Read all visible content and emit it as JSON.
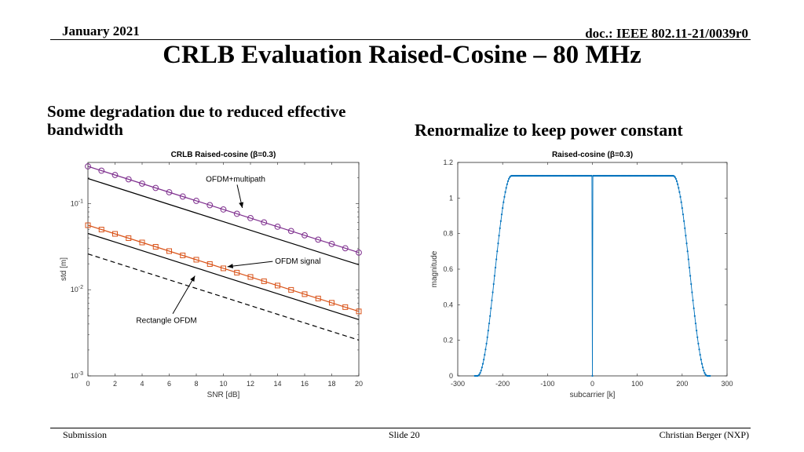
{
  "slide": {
    "date": "January 2021",
    "doc": "doc.: IEEE 802.11-21/0039r0",
    "title": "CRLB Evaluation Raised-Cosine – 80 MHz",
    "left_text": "Some degradation due to reduced effective bandwidth",
    "right_text": "Renormalize to keep power constant",
    "footer_left": "Submission",
    "footer_center": "Slide 20",
    "footer_right": "Christian Berger (NXP)"
  },
  "chart_data": [
    {
      "type": "line",
      "title": "CRLB Raised-cosine (β=0.3)",
      "xlabel": "SNR [dB]",
      "ylabel": "std [m]",
      "yscale": "log",
      "xlim": [
        0,
        20
      ],
      "ylim": [
        0.001,
        0.3
      ],
      "xticks": [
        0,
        2,
        4,
        6,
        8,
        10,
        12,
        14,
        16,
        18,
        20
      ],
      "yticks": [
        {
          "value": 0.1,
          "base": "10",
          "exp": "-1"
        },
        {
          "value": 0.01,
          "base": "10",
          "exp": "-2"
        },
        {
          "value": 0.001,
          "base": "10",
          "exp": "-3"
        }
      ],
      "series": [
        {
          "style": "purple-circle",
          "color": "#7e2f8e",
          "x": [
            0,
            20
          ],
          "y": [
            0.27,
            0.027
          ],
          "markers_every": 1
        },
        {
          "style": "black-solid",
          "color": "#000000",
          "x": [
            0,
            20
          ],
          "y": [
            0.195,
            0.0195
          ]
        },
        {
          "style": "orange-square",
          "color": "#d95319",
          "x": [
            0,
            20
          ],
          "y": [
            0.056,
            0.0056
          ],
          "markers_every": 1
        },
        {
          "style": "black-solid",
          "color": "#000000",
          "x": [
            0,
            20
          ],
          "y": [
            0.045,
            0.0045
          ]
        },
        {
          "style": "black-dashed",
          "color": "#000000",
          "x": [
            0,
            20
          ],
          "y": [
            0.026,
            0.0026
          ]
        }
      ],
      "annotations": [
        {
          "text": "OFDM+multipath",
          "tx": 10.9,
          "ty": 0.18,
          "ax": 11.4,
          "ay": 0.089
        },
        {
          "text": "OFDM signal",
          "tx": 15.5,
          "ty": 0.02,
          "ax": 10.3,
          "ay": 0.0185
        },
        {
          "text": "Rectangle OFDM",
          "tx": 5.8,
          "ty": 0.0041,
          "ax": 7.9,
          "ay": 0.0145
        }
      ]
    },
    {
      "type": "line",
      "title": "Raised-cosine (β=0.3)",
      "xlabel": "subcarrier [k]",
      "ylabel": "magnitude",
      "xlim": [
        -300,
        300
      ],
      "ylim": [
        0,
        1.2
      ],
      "xticks": [
        -300,
        -200,
        -100,
        0,
        100,
        200,
        300
      ],
      "yticks": [
        0,
        0.2,
        0.4,
        0.6,
        0.8,
        1,
        1.2
      ],
      "series": [
        {
          "color": "#0072bd",
          "flat_magnitude": 1.125,
          "flat_edge": 180,
          "band_edge": 256,
          "dc_null": true
        }
      ]
    }
  ]
}
